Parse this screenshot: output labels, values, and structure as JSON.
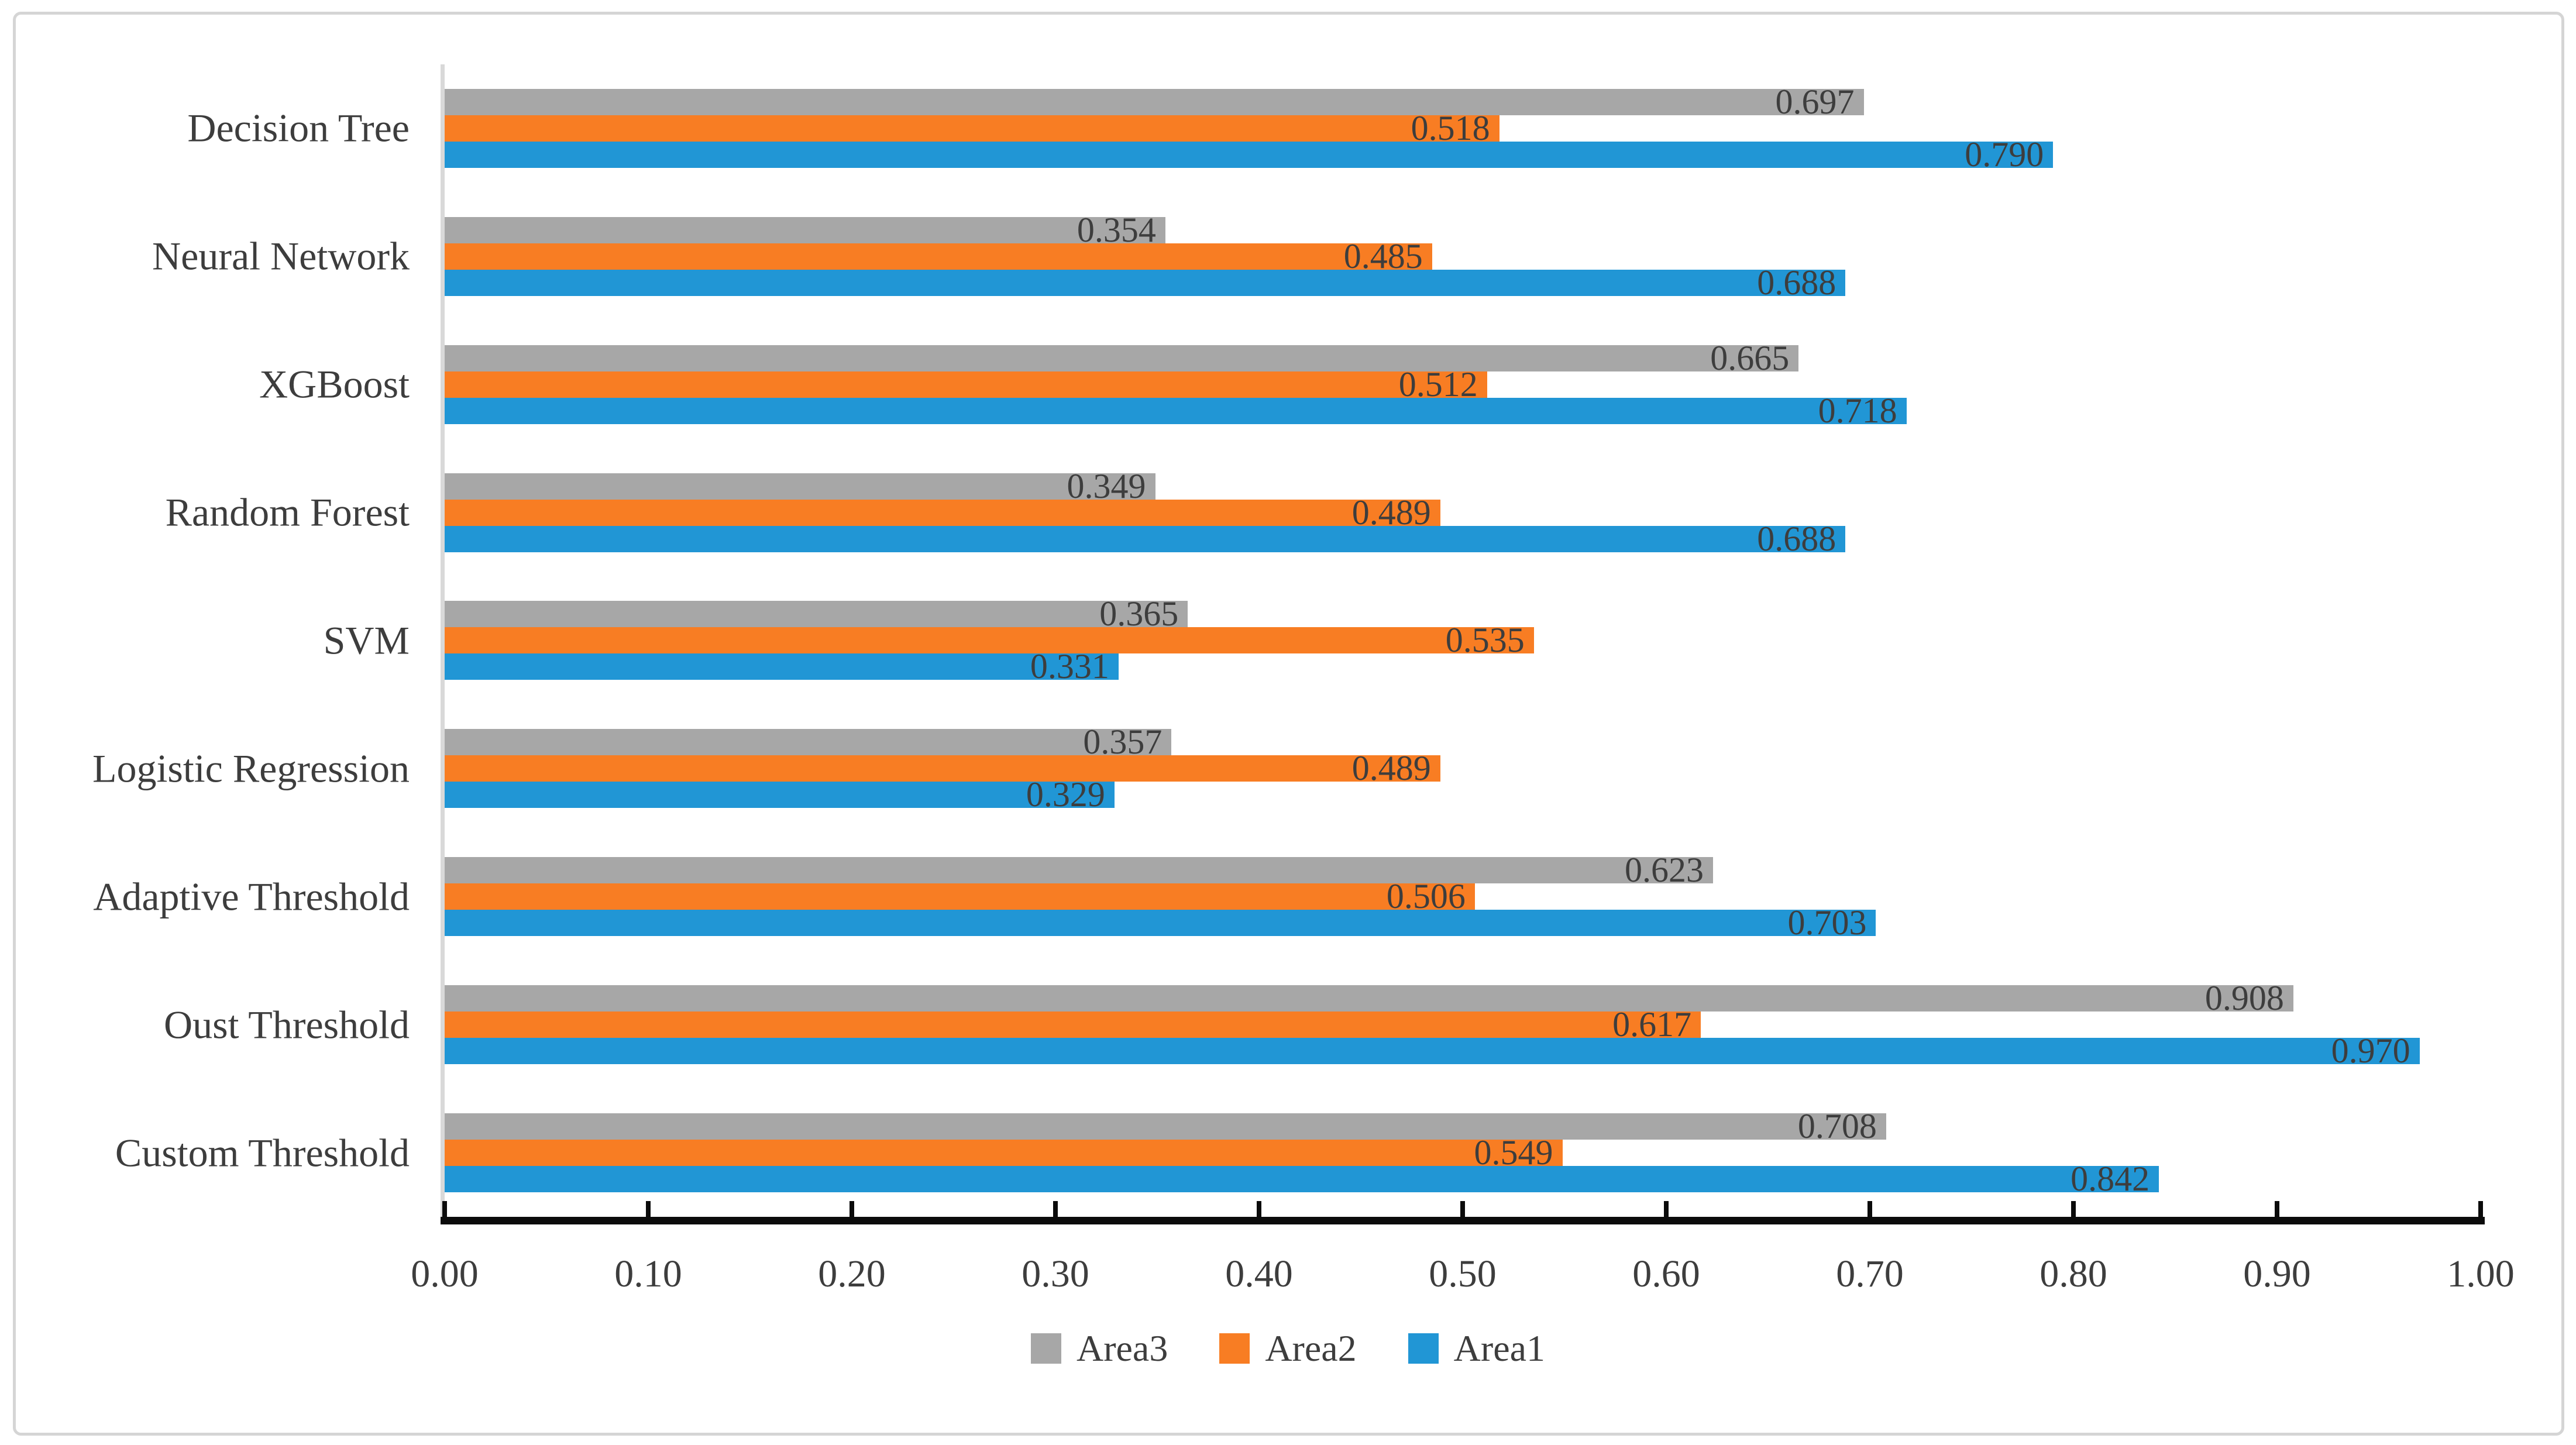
{
  "chart_data": {
    "type": "bar",
    "orientation": "horizontal",
    "categories": [
      "Decision Tree",
      "Neural Network",
      "XGBoost",
      "Random Forest",
      "SVM",
      "Logistic Regression",
      "Adaptive Threshold",
      "Oust Threshold",
      "Custom Threshold"
    ],
    "series": [
      {
        "name": "Area3",
        "color": "#a7a7a7",
        "values": [
          0.697,
          0.354,
          0.665,
          0.349,
          0.365,
          0.357,
          0.623,
          0.908,
          0.708
        ]
      },
      {
        "name": "Area2",
        "color": "#f87d23",
        "values": [
          0.518,
          0.485,
          0.512,
          0.489,
          0.535,
          0.489,
          0.506,
          0.617,
          0.549
        ]
      },
      {
        "name": "Area1",
        "color": "#2196d5",
        "values": [
          0.79,
          0.688,
          0.718,
          0.688,
          0.331,
          0.329,
          0.703,
          0.97,
          0.842
        ]
      }
    ],
    "bar_order_top_to_bottom": [
      "Area3",
      "Area2",
      "Area1"
    ],
    "value_label_decimals": 3,
    "x_axis": {
      "min": 0.0,
      "max": 1.0,
      "tick_interval": 0.1,
      "tick_labels": [
        "0.00",
        "0.10",
        "0.20",
        "0.30",
        "0.40",
        "0.50",
        "0.60",
        "0.70",
        "0.80",
        "0.90",
        "1.00"
      ]
    },
    "grid": false,
    "legend": {
      "position": "bottom",
      "entries": [
        "Area3",
        "Area2",
        "Area1"
      ]
    },
    "title": ""
  },
  "style": {
    "axis_color": "#0b0b0b",
    "y_axis_line_color": "#d9d9d9",
    "label_text_color": "#3d3d3d",
    "frame_border_color": "#d5d5d5"
  }
}
